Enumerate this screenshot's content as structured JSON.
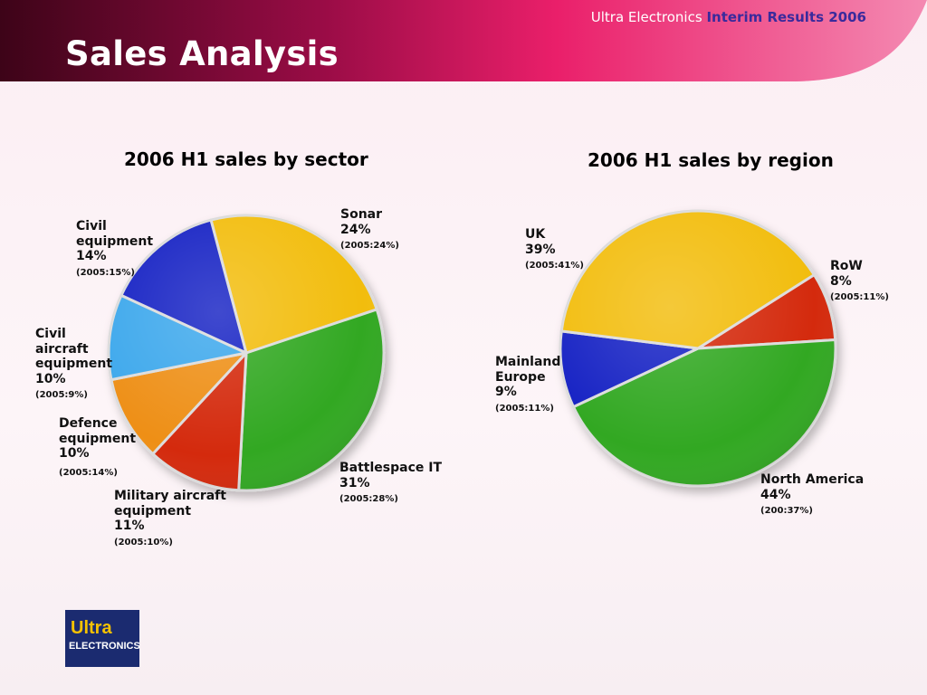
{
  "header": {
    "company": "Ultra Electronics",
    "results": "Interim Results 2006",
    "title": "Sales Analysis"
  },
  "logo": {
    "line1": "Ultra",
    "line2": "ELECTRONICS"
  },
  "colors": {
    "yellow": "#f2bd0f",
    "green": "#33a822",
    "red": "#d42a10",
    "orange": "#ee8f19",
    "lightblue": "#3ea8ec",
    "blue": "#1424c4",
    "banner_dark": "#3d0418",
    "banner_pink": "#ea1f6a",
    "results_text": "#3a2a9c"
  },
  "chart_data": [
    {
      "type": "pie",
      "title": "2006 H1 sales by sector",
      "slices": [
        {
          "label": "Sonar",
          "pct": "24%",
          "value": 24,
          "prev": "(2005:24%)",
          "color": "#f2bd0f"
        },
        {
          "label": "Battlespace IT",
          "pct": "31%",
          "value": 31,
          "prev": "(2005:28%)",
          "color": "#33a822"
        },
        {
          "label": "Military aircraft equipment",
          "pct": "11%",
          "value": 11,
          "prev": "(2005:10%)",
          "color": "#d42a10"
        },
        {
          "label": "Defence equipment",
          "pct": "10%",
          "value": 10,
          "prev": "(2005:14%)",
          "color": "#ee8f19"
        },
        {
          "label": "Civil aircraft equipment",
          "pct": "10%",
          "value": 10,
          "prev": "(2005:9%)",
          "color": "#3ea8ec"
        },
        {
          "label": "Civil equipment",
          "pct": "14%",
          "value": 14,
          "prev": "(2005:15%)",
          "color": "#1424c4"
        }
      ]
    },
    {
      "type": "pie",
      "title": "2006 H1 sales by region",
      "slices": [
        {
          "label": "RoW",
          "pct": "8%",
          "value": 8,
          "prev": "(2005:11%)",
          "color": "#d42a10"
        },
        {
          "label": "North America",
          "pct": "44%",
          "value": 44,
          "prev": "(200:37%)",
          "color": "#33a822"
        },
        {
          "label": "Mainland Europe",
          "pct": "9%",
          "value": 9,
          "prev": "(2005:11%)",
          "color": "#1424c4"
        },
        {
          "label": "UK",
          "pct": "39%",
          "value": 39,
          "prev": "(2005:41%)",
          "color": "#f2bd0f"
        }
      ]
    }
  ]
}
